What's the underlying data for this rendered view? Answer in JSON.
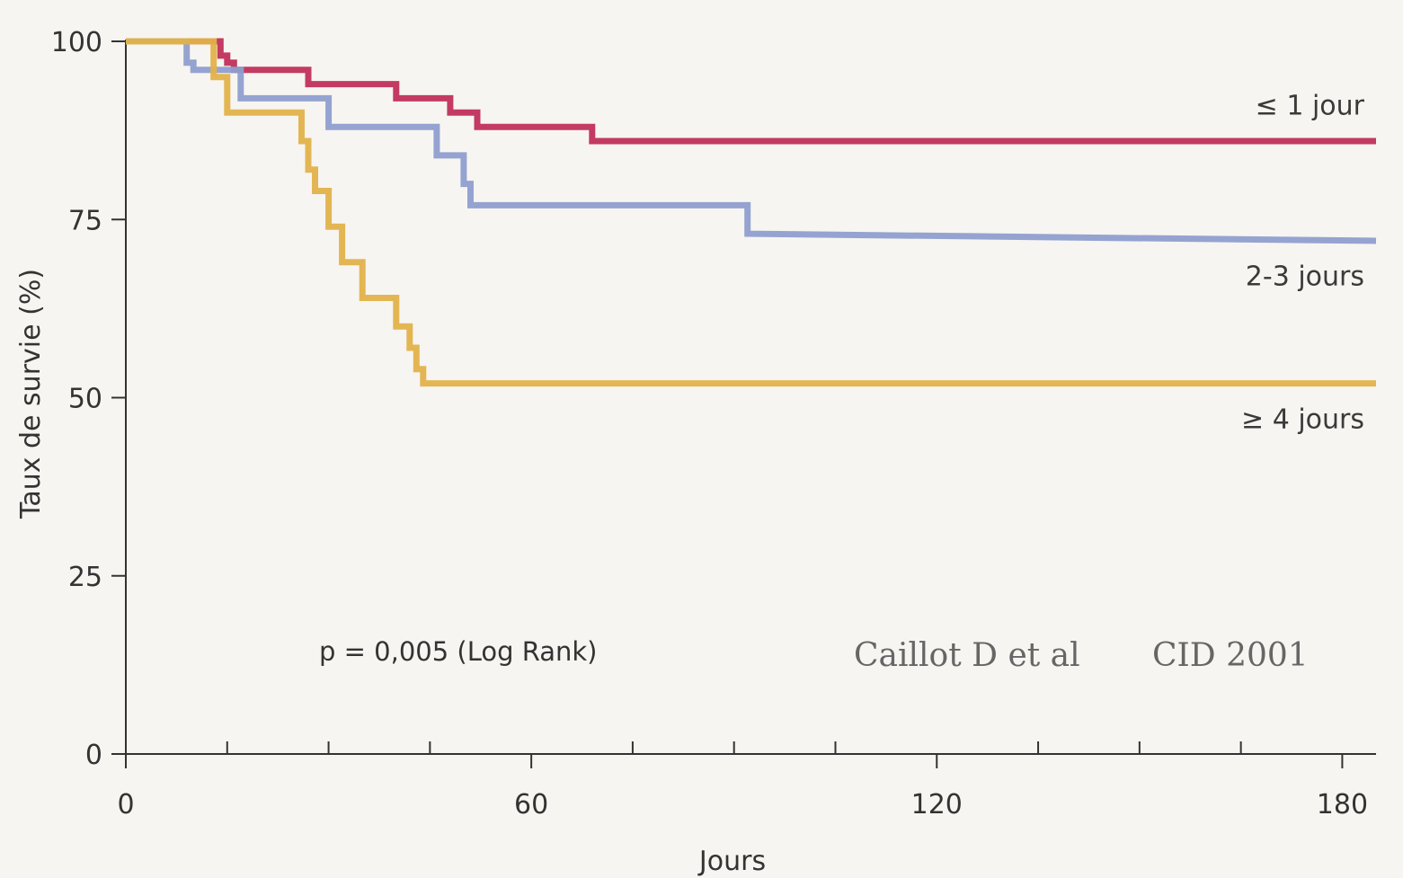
{
  "chart_data": {
    "type": "line",
    "xlabel": "Jours",
    "ylabel": "Taux de survie (%)",
    "xlim": [
      0,
      185
    ],
    "ylim": [
      0,
      100
    ],
    "x_ticks": [
      0,
      60,
      120,
      180
    ],
    "x_minor_ticks": [
      15,
      30,
      45,
      75,
      90,
      105,
      135,
      150,
      165
    ],
    "y_ticks": [
      0,
      25,
      50,
      75,
      100
    ],
    "grid": false,
    "series": [
      {
        "name": "≤ 1 jour",
        "color": "#c0305a",
        "x": [
          0,
          14,
          14,
          15,
          15,
          16,
          16,
          27,
          27,
          40,
          40,
          48,
          48,
          52,
          52,
          69,
          69,
          185
        ],
        "y": [
          100,
          100,
          98,
          98,
          97,
          97,
          96,
          96,
          94,
          94,
          92,
          92,
          90,
          90,
          88,
          88,
          86,
          86
        ]
      },
      {
        "name": "2-3 jours",
        "color": "#8f9ecf",
        "x": [
          0,
          9,
          9,
          10,
          10,
          17,
          17,
          30,
          30,
          46,
          46,
          50,
          50,
          51,
          51,
          92,
          92,
          185
        ],
        "y": [
          100,
          100,
          97,
          97,
          96,
          96,
          92,
          92,
          88,
          88,
          84,
          84,
          80,
          80,
          77,
          77,
          73,
          72
        ]
      },
      {
        "name": "≥ 4 jours",
        "color": "#e2b24a",
        "x": [
          0,
          13,
          13,
          15,
          15,
          26,
          26,
          27,
          27,
          28,
          28,
          30,
          30,
          32,
          32,
          35,
          35,
          40,
          40,
          42,
          42,
          43,
          43,
          44,
          44,
          185
        ],
        "y": [
          100,
          100,
          95,
          95,
          90,
          90,
          86,
          86,
          82,
          82,
          79,
          79,
          74,
          74,
          69,
          69,
          64,
          64,
          60,
          60,
          57,
          57,
          54,
          54,
          52,
          52
        ]
      }
    ],
    "series_labels": [
      {
        "text": "≤ 1 jour",
        "y": 91
      },
      {
        "text": "2-3 jours",
        "y": 67
      },
      {
        "text": "≥ 4 jours",
        "y": 47
      }
    ],
    "annotations": {
      "p_value": "p = 0,005 (Log Rank)",
      "citation_author": "Caillot D et al",
      "citation_source": "CID 2001"
    }
  }
}
